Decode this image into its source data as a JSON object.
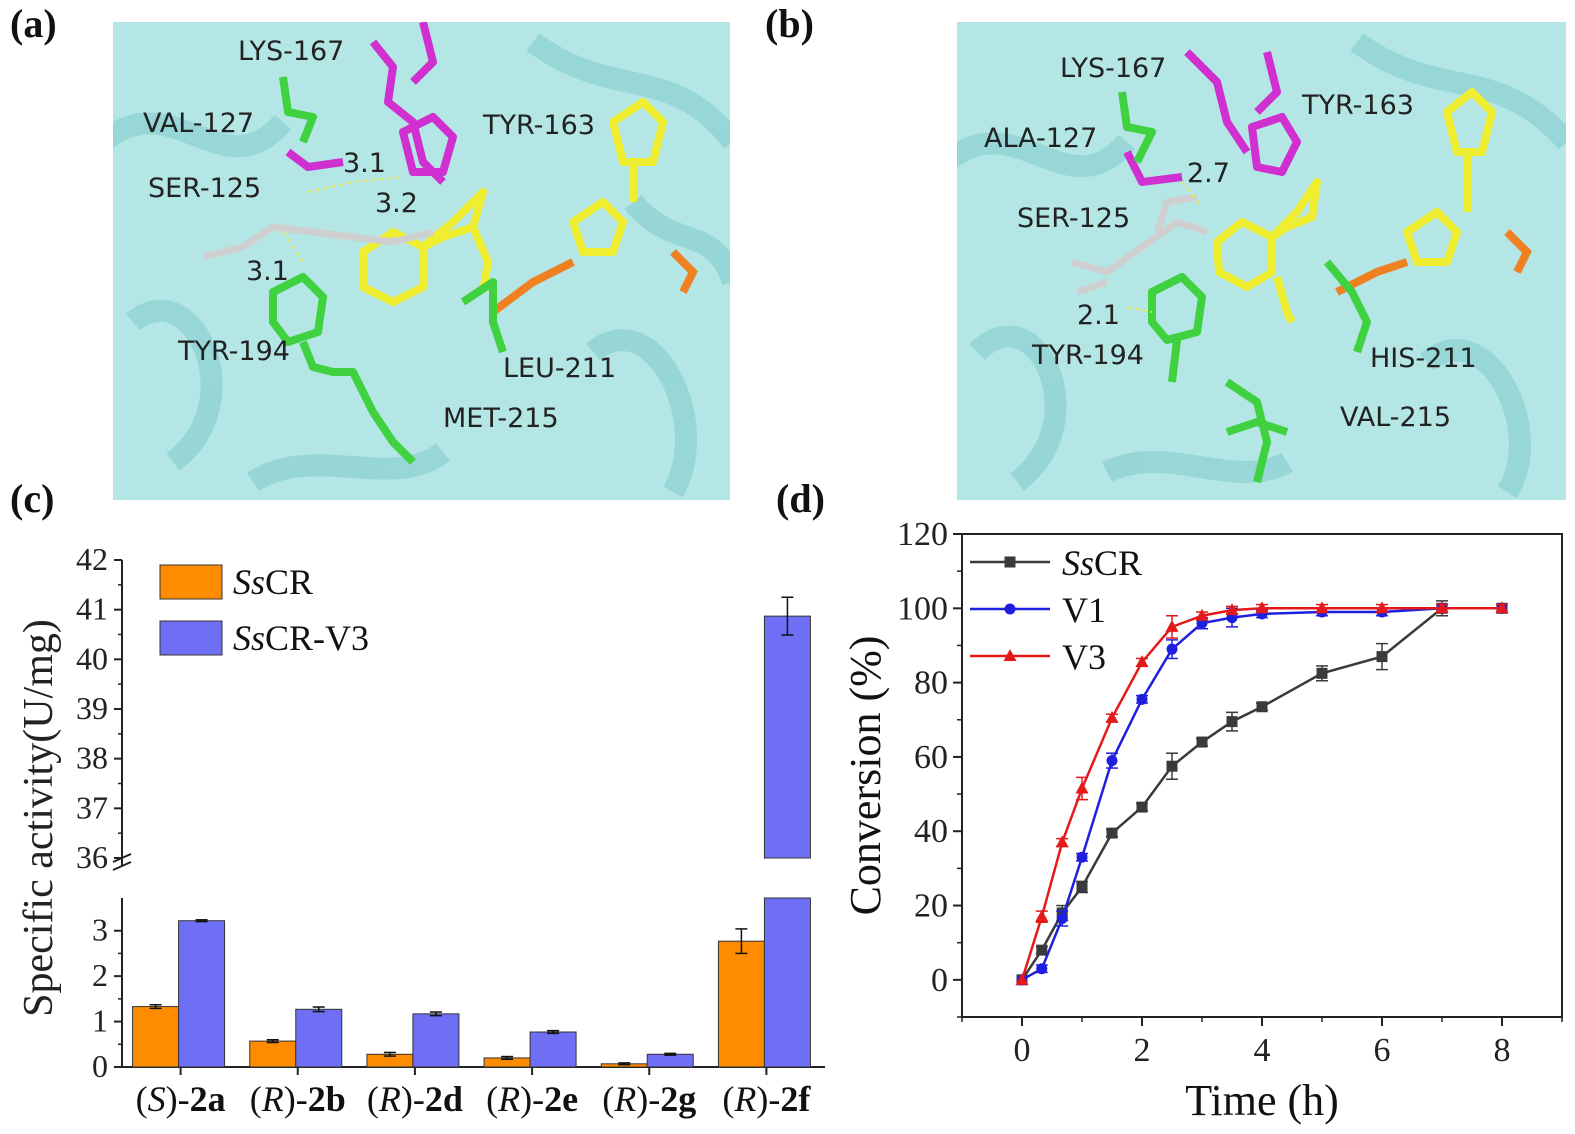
{
  "panels": {
    "a": "(a)",
    "b": "(b)",
    "c": "(c)",
    "d": "(d)"
  },
  "structure_a": {
    "residues": [
      "LYS-167",
      "VAL-127",
      "TYR-163",
      "SER-125",
      "TYR-194",
      "LEU-211",
      "MET-215"
    ],
    "distances": [
      "3.1",
      "3.2",
      "3.1"
    ]
  },
  "structure_b": {
    "residues": [
      "LYS-167",
      "TYR-163",
      "ALA-127",
      "SER-125",
      "TYR-194",
      "HIS-211",
      "VAL-215"
    ],
    "distances": [
      "2.7",
      "2.1"
    ]
  },
  "colors": {
    "cartoon": "#a8e0e0",
    "carbon_green": "#3fd13f",
    "carbon_magenta": "#d030d0",
    "carbon_yellow": "#f0ee30",
    "carbon_white": "#cfcfcf",
    "oxygen": "#e02020",
    "nitrogen": "#2030e0",
    "phosphorus": "#f08020",
    "bar_ss": "#ff8c00",
    "bar_v3": "#6f6ff6",
    "line_ss": "#3a3a3a",
    "line_v1": "#1f1fe0",
    "line_v3": "#e41a1a"
  },
  "chart_data": [
    {
      "type": "bar",
      "title": "",
      "xlabel": "",
      "ylabel": "Specific activity(U/mg)",
      "categories": [
        "(S)-2a",
        "(R)-2b",
        "(R)-2d",
        "(R)-2e",
        "(R)-2g",
        "(R)-2f"
      ],
      "category_parts": [
        {
          "pre": "(",
          "it": "S",
          "post": ")-",
          "bold": "2a"
        },
        {
          "pre": "(",
          "it": "R",
          "post": ")-",
          "bold": "2b"
        },
        {
          "pre": "(",
          "it": "R",
          "post": ")-",
          "bold": "2d"
        },
        {
          "pre": "(",
          "it": "R",
          "post": ")-",
          "bold": "2e"
        },
        {
          "pre": "(",
          "it": "R",
          "post": ")-",
          "bold": "2g"
        },
        {
          "pre": "(",
          "it": "R",
          "post": ")-",
          "bold": "2f"
        }
      ],
      "series": [
        {
          "name": "SsCR",
          "name_italic": "Ss",
          "name_rest": "CR",
          "values": [
            1.33,
            0.57,
            0.28,
            0.2,
            0.07,
            2.77
          ],
          "errors": [
            0.04,
            0.03,
            0.04,
            0.03,
            0.02,
            0.27
          ]
        },
        {
          "name": "SsCR-V3",
          "name_italic": "Ss",
          "name_rest": "CR-V3",
          "values": [
            3.22,
            1.27,
            1.17,
            0.77,
            0.28,
            40.87
          ],
          "errors": [
            0.02,
            0.05,
            0.04,
            0.03,
            0.02,
            0.38
          ]
        }
      ],
      "axis_break": {
        "lower": [
          0,
          3.5
        ],
        "upper": [
          36,
          42
        ]
      },
      "yticks_lower": [
        "0",
        "1",
        "2",
        "3"
      ],
      "yticks_upper": [
        "36",
        "37",
        "38",
        "39",
        "40",
        "41",
        "42"
      ],
      "legend": "top-left"
    },
    {
      "type": "line",
      "title": "",
      "xlabel": "Time (h)",
      "ylabel": "Conversion (%)",
      "xlim": [
        -1,
        9
      ],
      "ylim": [
        -10,
        120
      ],
      "xticks": [
        "0",
        "2",
        "4",
        "6",
        "8"
      ],
      "yticks": [
        "0",
        "20",
        "40",
        "60",
        "80",
        "100",
        "120"
      ],
      "legend": "top-left",
      "series": [
        {
          "name": "SsCR",
          "name_italic": "Ss",
          "name_rest": "CR",
          "marker": "square",
          "x": [
            0,
            0.33,
            0.67,
            1,
            1.5,
            2,
            2.5,
            3,
            3.5,
            4,
            5,
            6,
            7,
            8
          ],
          "y": [
            0,
            8,
            18,
            25,
            39.5,
            46.5,
            57.5,
            64,
            69.5,
            73.5,
            82.5,
            87,
            100,
            100
          ],
          "err": [
            0,
            1,
            2,
            1.5,
            1,
            1,
            3.5,
            1,
            2.5,
            1,
            2,
            3.5,
            2,
            1
          ]
        },
        {
          "name": "V1",
          "name_italic": "",
          "name_rest": "V1",
          "marker": "circle",
          "x": [
            0,
            0.33,
            0.67,
            1,
            1.5,
            2,
            2.5,
            3,
            3.5,
            4,
            5,
            6,
            7,
            8
          ],
          "y": [
            0,
            3,
            16.5,
            33,
            59,
            75.5,
            89,
            96,
            97.5,
            98.5,
            99,
            99,
            100,
            100
          ],
          "err": [
            0,
            1,
            2,
            1,
            2,
            1,
            2.5,
            1.5,
            2.5,
            1,
            1,
            1,
            1,
            1
          ]
        },
        {
          "name": "V3",
          "name_italic": "",
          "name_rest": "V3",
          "marker": "triangle",
          "x": [
            0,
            0.33,
            0.67,
            1,
            1.5,
            2,
            2.5,
            3,
            3.5,
            4,
            5,
            6,
            7,
            8
          ],
          "y": [
            0,
            17,
            37,
            51.5,
            70.5,
            85.5,
            95,
            98,
            99.5,
            100,
            100,
            100,
            100,
            100
          ],
          "err": [
            0,
            1.5,
            1,
            3,
            1,
            1,
            3,
            1,
            1,
            1,
            1,
            1,
            1,
            1
          ]
        }
      ]
    }
  ]
}
